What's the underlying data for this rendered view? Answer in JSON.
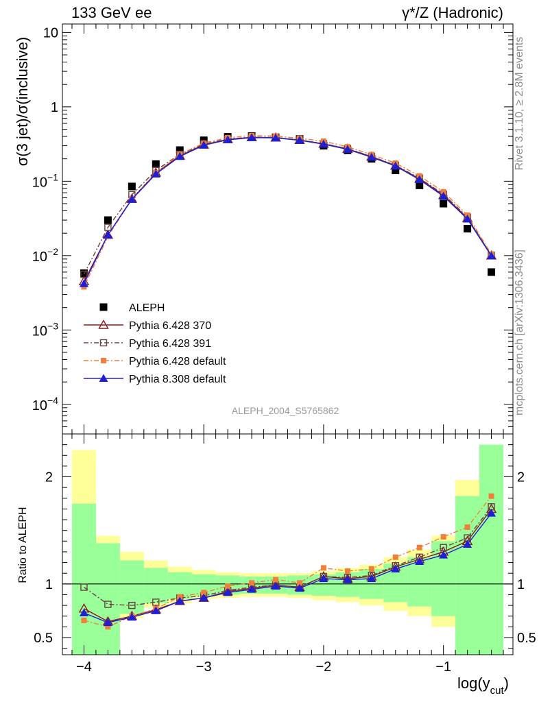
{
  "header": {
    "left": "133 GeV ee",
    "right": "γ*/Z (Hadronic)"
  },
  "side_text": {
    "top": "Rivet 3.1.10, ≥ 2.8M events",
    "bottom": "mcplots.cern.ch [arXiv:1306.3436]"
  },
  "analysis_tag": "ALEPH_2004_S5765862",
  "chart_data": [
    {
      "type": "line",
      "panel": "main",
      "ylabel": "σ(3 jet)/σ(inclusive)",
      "yscale": "log",
      "ylim": [
        4e-05,
        13
      ],
      "xlim": [
        -4.18,
        -0.42
      ],
      "y_ticks": [
        {
          "value": 10,
          "label": "10"
        },
        {
          "value": 1,
          "label": "1"
        },
        {
          "value": 0.1,
          "base": "10",
          "exp": "−1"
        },
        {
          "value": 0.01,
          "base": "10",
          "exp": "−2"
        },
        {
          "value": 0.001,
          "base": "10",
          "exp": "−3"
        },
        {
          "value": 0.0001,
          "base": "10",
          "exp": "−4"
        }
      ],
      "x": [
        -4.0,
        -3.8,
        -3.6,
        -3.4,
        -3.2,
        -3.0,
        -2.8,
        -2.6,
        -2.4,
        -2.2,
        -2.0,
        -1.8,
        -1.6,
        -1.4,
        -1.2,
        -1.0,
        -0.8,
        -0.6
      ],
      "series": [
        {
          "name": "ALEPH",
          "color": "#000000",
          "marker": "square-filled",
          "line": "none",
          "values": [
            0.0058,
            0.03,
            0.085,
            0.17,
            0.262,
            0.355,
            0.395,
            0.405,
            0.39,
            0.37,
            0.3,
            0.26,
            0.2,
            0.14,
            0.088,
            0.05,
            0.023,
            0.006
          ]
        },
        {
          "name": "Pythia 6.428 370",
          "color": "#8b1a1a",
          "marker": "triangle-open",
          "line": "solid",
          "values": [
            0.0045,
            0.019,
            0.058,
            0.13,
            0.22,
            0.31,
            0.365,
            0.39,
            0.385,
            0.358,
            0.318,
            0.272,
            0.214,
            0.162,
            0.108,
            0.065,
            0.032,
            0.01
          ]
        },
        {
          "name": "Pythia 6.428 391",
          "color": "#6b4040",
          "marker": "square-open",
          "line": "dashdot",
          "values": [
            0.0056,
            0.024,
            0.066,
            0.14,
            0.23,
            0.315,
            0.37,
            0.392,
            0.388,
            0.36,
            0.32,
            0.275,
            0.216,
            0.164,
            0.11,
            0.067,
            0.033,
            0.0101
          ]
        },
        {
          "name": "Pythia 6.428 default",
          "color": "#f07f3c",
          "marker": "square-filled-small",
          "line": "dashdot",
          "values": [
            0.0038,
            0.018,
            0.058,
            0.13,
            0.23,
            0.325,
            0.385,
            0.41,
            0.405,
            0.378,
            0.345,
            0.29,
            0.228,
            0.175,
            0.118,
            0.072,
            0.035,
            0.0105
          ]
        },
        {
          "name": "Pythia 8.308 default",
          "color": "#1f1fd6",
          "marker": "triangle-filled",
          "line": "solid",
          "values": [
            0.0042,
            0.019,
            0.057,
            0.125,
            0.215,
            0.305,
            0.36,
            0.385,
            0.382,
            0.355,
            0.315,
            0.268,
            0.21,
            0.16,
            0.105,
            0.063,
            0.031,
            0.0099
          ]
        }
      ]
    },
    {
      "type": "line",
      "panel": "ratio",
      "ylabel": "Ratio to ALEPH",
      "xlabel": "log(y",
      "xlabel_sub": "cut",
      "xlabel_close": ")",
      "ylim": [
        0.34,
        2.4
      ],
      "xlim": [
        -4.18,
        -0.42
      ],
      "y_ticks": [
        {
          "value": 2,
          "label": "2"
        },
        {
          "value": 1,
          "label": "1"
        },
        {
          "value": 0.5,
          "label": "0.5"
        }
      ],
      "x_ticks": [
        {
          "value": -4,
          "label": "−4"
        },
        {
          "value": -3,
          "label": "−3"
        },
        {
          "value": -2,
          "label": "−2"
        },
        {
          "value": -1,
          "label": "−1"
        }
      ],
      "reference": 1,
      "bin_edges": [
        -4.1,
        -3.9,
        -3.7,
        -3.5,
        -3.3,
        -3.1,
        -2.9,
        -2.7,
        -2.5,
        -2.3,
        -2.1,
        -1.9,
        -1.7,
        -1.5,
        -1.3,
        -1.1,
        -0.9,
        -0.7,
        -0.5
      ],
      "bands": [
        {
          "name": "total uncertainty",
          "color": "#ffff99",
          "low": [
            0.3,
            0.3,
            0.68,
            0.78,
            0.82,
            0.86,
            0.87,
            0.88,
            0.88,
            0.87,
            0.85,
            0.83,
            0.8,
            0.75,
            0.7,
            0.6,
            0.3,
            0.3
          ],
          "high": [
            2.25,
            1.45,
            1.3,
            1.22,
            1.16,
            1.13,
            1.11,
            1.1,
            1.1,
            1.1,
            1.12,
            1.15,
            1.18,
            1.25,
            1.32,
            1.45,
            1.97,
            2.3
          ]
        },
        {
          "name": "statistical uncertainty",
          "color": "#99ff99",
          "low": [
            0.3,
            0.3,
            0.72,
            0.82,
            0.86,
            0.89,
            0.9,
            0.91,
            0.91,
            0.9,
            0.89,
            0.88,
            0.86,
            0.83,
            0.79,
            0.7,
            0.3,
            0.3
          ],
          "high": [
            1.75,
            1.38,
            1.22,
            1.15,
            1.11,
            1.09,
            1.08,
            1.07,
            1.07,
            1.08,
            1.09,
            1.11,
            1.14,
            1.19,
            1.25,
            1.4,
            1.82,
            2.3
          ]
        }
      ],
      "x": [
        -4.0,
        -3.8,
        -3.6,
        -3.4,
        -3.2,
        -3.0,
        -2.8,
        -2.6,
        -2.4,
        -2.2,
        -2.0,
        -1.8,
        -1.6,
        -1.4,
        -1.2,
        -1.0,
        -0.8,
        -0.6
      ],
      "series": [
        {
          "name": "Pythia 6.428 370",
          "color": "#8b1a1a",
          "marker": "triangle-open",
          "line": "solid",
          "values": [
            0.77,
            0.65,
            0.7,
            0.76,
            0.84,
            0.87,
            0.93,
            0.96,
            0.99,
            0.97,
            1.07,
            1.05,
            1.07,
            1.16,
            1.23,
            1.3,
            1.4,
            1.7
          ]
        },
        {
          "name": "Pythia 6.428 391",
          "color": "#6b4040",
          "marker": "square-open",
          "line": "dashdot",
          "values": [
            0.97,
            0.81,
            0.8,
            0.83,
            0.87,
            0.89,
            0.94,
            0.97,
            0.99,
            0.97,
            1.07,
            1.06,
            1.08,
            1.17,
            1.25,
            1.34,
            1.43,
            1.72
          ]
        },
        {
          "name": "Pythia 6.428 default",
          "color": "#f07f3c",
          "marker": "square-filled-small",
          "line": "dashdot",
          "values": [
            0.66,
            0.6,
            0.7,
            0.77,
            0.88,
            0.92,
            0.98,
            1.01,
            1.04,
            1.01,
            1.15,
            1.12,
            1.14,
            1.25,
            1.34,
            1.44,
            1.53,
            1.82
          ]
        },
        {
          "name": "Pythia 8.308 default",
          "color": "#1f1fd6",
          "marker": "triangle-filled",
          "line": "solid",
          "values": [
            0.73,
            0.64,
            0.69,
            0.75,
            0.84,
            0.87,
            0.92,
            0.95,
            0.98,
            0.96,
            1.05,
            1.04,
            1.05,
            1.14,
            1.21,
            1.27,
            1.37,
            1.66
          ]
        }
      ]
    }
  ]
}
